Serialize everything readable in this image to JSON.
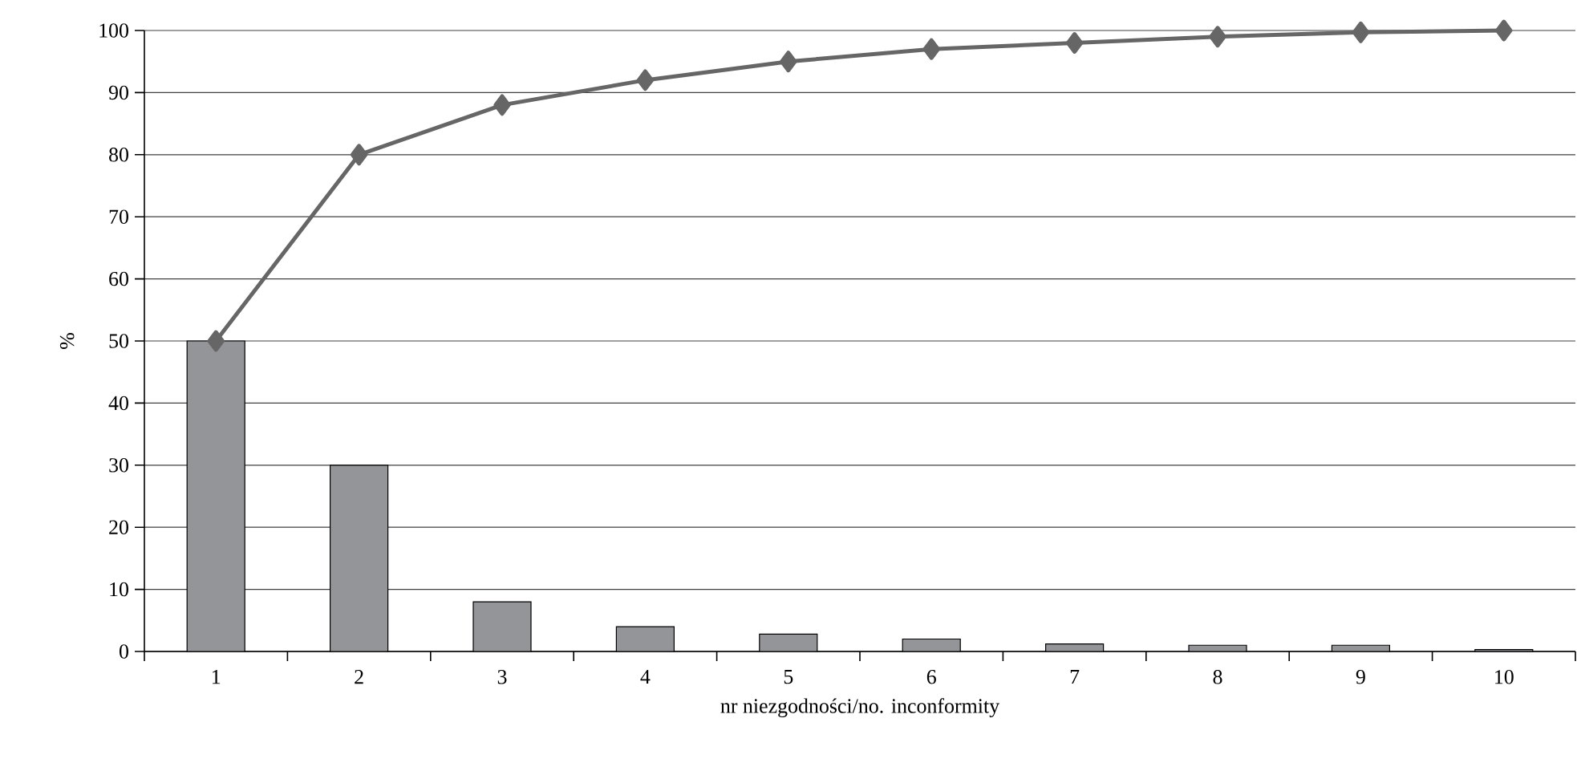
{
  "chart_data": {
    "type": "bar",
    "xlabel": "nr niezgodności/no. inconformity",
    "ylabel": "%",
    "categories": [
      "1",
      "2",
      "3",
      "4",
      "5",
      "6",
      "7",
      "8",
      "9",
      "10"
    ],
    "series": [
      {
        "color": "#939598",
        "values": [
          50,
          30,
          8,
          4,
          2.8,
          2,
          1.2,
          1,
          1,
          0.3
        ]
      },
      {
        "type": "line",
        "color": "#666666",
        "marker": "diamond",
        "values": [
          50,
          80,
          88,
          92,
          95,
          97,
          98,
          99,
          99.7,
          100
        ]
      }
    ],
    "ylim": [
      0,
      100
    ],
    "yticks": [
      0,
      10,
      20,
      30,
      40,
      50,
      60,
      70,
      80,
      90,
      100
    ],
    "grid": "y"
  }
}
